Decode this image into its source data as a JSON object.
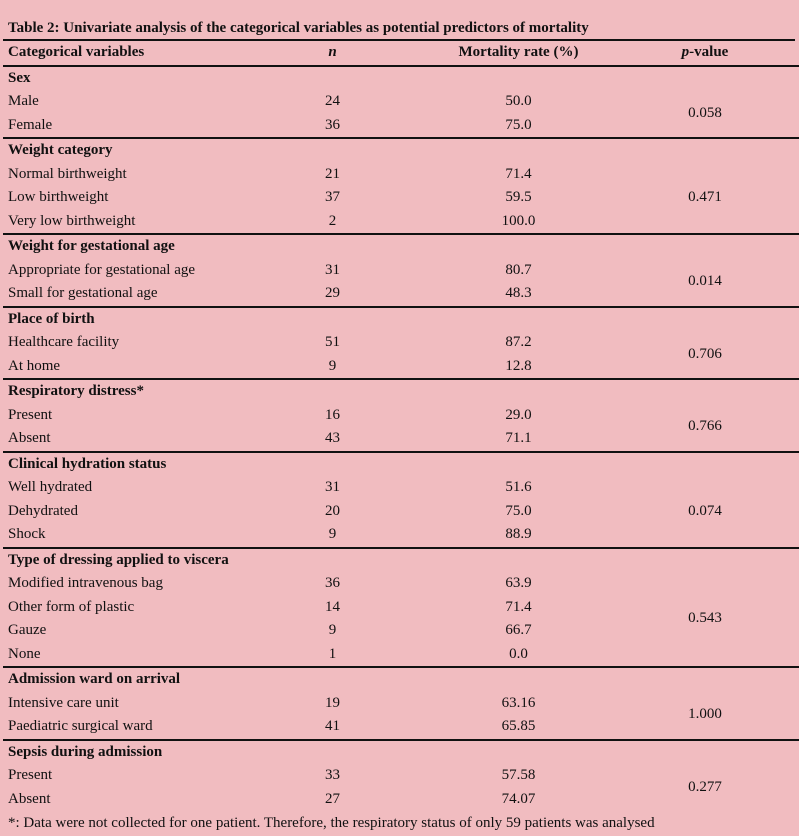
{
  "title": "Table 2: Univariate analysis of the categorical variables as potential predictors of mortality",
  "columns": {
    "variable": "Categorical variables",
    "n": "n",
    "mortality": "Mortality rate (%)",
    "p_italic": "p",
    "p_suffix": "-value"
  },
  "groups": [
    {
      "name": "Sex",
      "p": "0.058",
      "rows": [
        [
          "Male",
          "24",
          "50.0"
        ],
        [
          "Female",
          "36",
          "75.0"
        ]
      ]
    },
    {
      "name": "Weight category",
      "p": "0.471",
      "rows": [
        [
          "Normal birthweight",
          "21",
          "71.4"
        ],
        [
          "Low birthweight",
          "37",
          "59.5"
        ],
        [
          "Very low birthweight",
          "2",
          "100.0"
        ]
      ]
    },
    {
      "name": "Weight for gestational age",
      "p": "0.014",
      "rows": [
        [
          "Appropriate for gestational age",
          "31",
          "80.7"
        ],
        [
          "Small for gestational age",
          "29",
          "48.3"
        ]
      ]
    },
    {
      "name": "Place of birth",
      "p": "0.706",
      "rows": [
        [
          "Healthcare facility",
          "51",
          "87.2"
        ],
        [
          "At home",
          "9",
          "12.8"
        ]
      ]
    },
    {
      "name": "Respiratory distress*",
      "p": "0.766",
      "rows": [
        [
          "Present",
          "16",
          "29.0"
        ],
        [
          "Absent",
          "43",
          "71.1"
        ]
      ]
    },
    {
      "name": "Clinical hydration status",
      "p": "0.074",
      "rows": [
        [
          "Well hydrated",
          "31",
          "51.6"
        ],
        [
          "Dehydrated",
          "20",
          "75.0"
        ],
        [
          "Shock",
          "9",
          "88.9"
        ]
      ]
    },
    {
      "name": "Type of dressing applied to viscera",
      "p": "0.543",
      "rows": [
        [
          "Modified intravenous bag",
          "36",
          "63.9"
        ],
        [
          "Other form of plastic",
          "14",
          "71.4"
        ],
        [
          "Gauze",
          "9",
          "66.7"
        ],
        [
          "None",
          "1",
          "0.0"
        ]
      ]
    },
    {
      "name": "Admission ward on arrival",
      "p": "1.000",
      "rows": [
        [
          "Intensive care unit",
          "19",
          "63.16"
        ],
        [
          "Paediatric surgical ward",
          "41",
          "65.85"
        ]
      ]
    },
    {
      "name": "Sepsis during admission",
      "p": "0.277",
      "rows": [
        [
          "Present",
          "33",
          "57.58"
        ],
        [
          "Absent",
          "27",
          "74.07"
        ]
      ]
    }
  ],
  "footnote": "*: Data were not collected for one patient. Therefore, the respiratory status of only 59 patients was analysed",
  "colors": {
    "background": "#f1bcc0",
    "rule": "#111111"
  }
}
